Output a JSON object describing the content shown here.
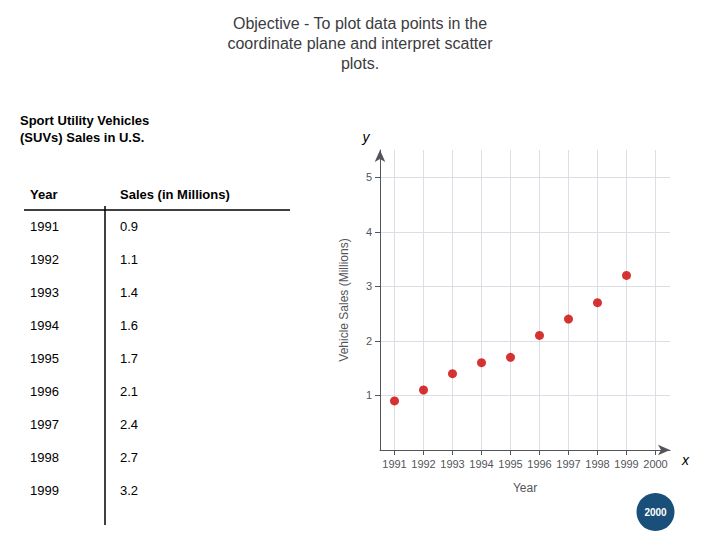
{
  "chart_data": {
    "type": "scatter",
    "title": "Objective - To plot data points in the\ncoordinate plane and interpret scatter\nplots.",
    "table_title": "Sport Utility Vehicles\n(SUVs) Sales in U.S.",
    "table_header": [
      "Year",
      "Sales (in Millions)"
    ],
    "x": [
      1991,
      1992,
      1993,
      1994,
      1995,
      1996,
      1997,
      1998,
      1999
    ],
    "values": [
      0.9,
      1.1,
      1.4,
      1.6,
      1.7,
      2.1,
      2.4,
      2.7,
      3.2
    ],
    "color": "#cc0000",
    "xlabel": "Year",
    "ylabel": "Vehicle Sales (Millions)",
    "xlim": [
      1990.5,
      2000.5
    ],
    "xticks": [
      1991,
      1992,
      1993,
      1994,
      1995,
      1996,
      1997,
      1998,
      1999,
      2000
    ],
    "ylim": [
      0,
      5.5
    ],
    "yticks": [
      1,
      2,
      3,
      4,
      5
    ],
    "grid": true,
    "annotations": [
      {
        "text": "y"
      },
      {
        "text": "x"
      },
      {
        "text": "2000",
        "x": 2000
      }
    ]
  }
}
